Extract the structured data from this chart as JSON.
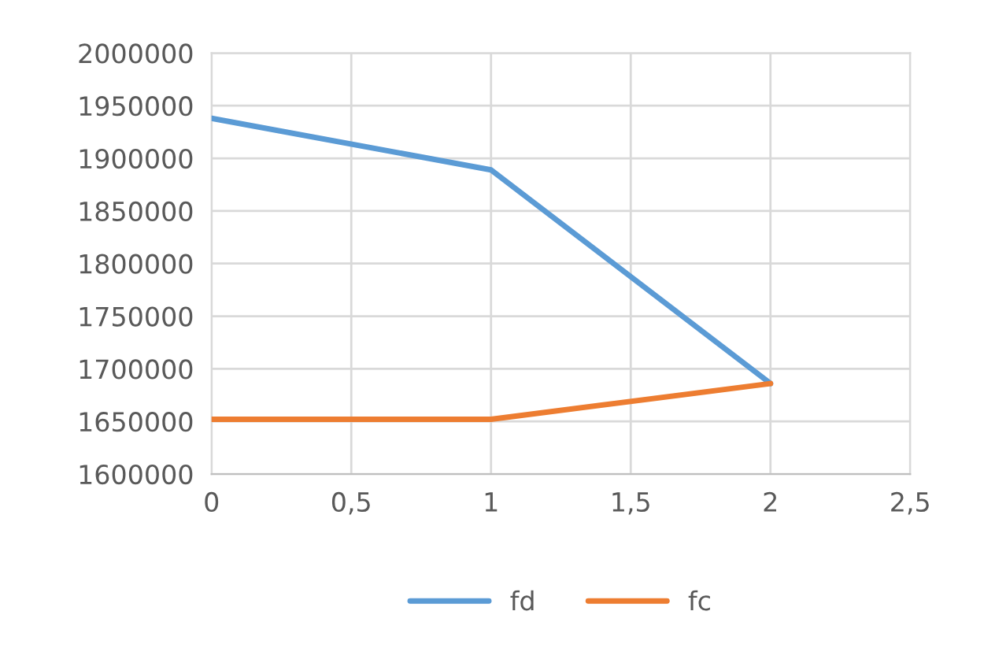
{
  "chart_data": {
    "type": "line",
    "x": [
      0,
      1,
      2
    ],
    "series": [
      {
        "name": "fd",
        "color": "#5b9bd5",
        "values": [
          1938000,
          1889000,
          1686000
        ]
      },
      {
        "name": "fc",
        "color": "#ed7d31",
        "values": [
          1652000,
          1652000,
          1686000
        ]
      }
    ],
    "xlim": [
      0,
      2.5
    ],
    "xticks": [
      0,
      {
        "value": 0.5,
        "label": "0,5"
      },
      1,
      {
        "value": 1.5,
        "label": "1,5"
      },
      2,
      {
        "value": 2.5,
        "label": "2,5"
      }
    ],
    "ylim": [
      1600000,
      2000000
    ],
    "yticks": [
      1600000,
      1650000,
      1700000,
      1750000,
      1800000,
      1850000,
      1900000,
      1950000,
      2000000
    ],
    "grid": true,
    "legend": "bottom",
    "marker": "none",
    "line_style": "solid"
  }
}
